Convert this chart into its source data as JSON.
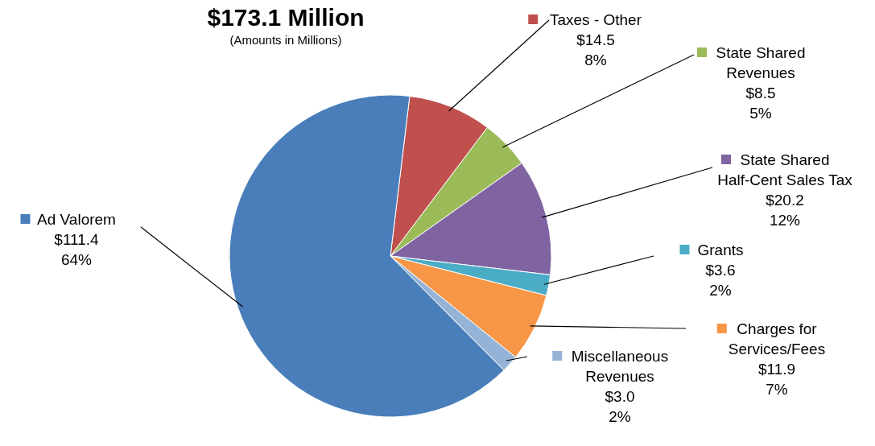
{
  "chart_data": {
    "type": "pie",
    "legend": "right",
    "title": "$173.1 Million",
    "subtitle": "(Amounts in Millions)",
    "categories": [
      "Taxes - Other",
      "State Shared Revenues",
      "State Shared Half-Cent Sales Tax",
      "Grants",
      "Charges for Services/Fees",
      "Miscellaneous Revenues",
      "Ad Valorem"
    ],
    "values": [
      14.5,
      8.5,
      20.2,
      3.6,
      11.9,
      3.0,
      111.4
    ],
    "colors": [
      "#c0504d",
      "#9bbb59",
      "#8064a2",
      "#4bacc6",
      "#f79646",
      "#95b3d7",
      "#4a7ebb"
    ],
    "value_labels": [
      "$14.5\n8%",
      "$8.5\n5%",
      "$20.2\n12%",
      "$3.6\n2%",
      "$11.9\n7%",
      "$3.0\n2%",
      "$111.4\n64%"
    ]
  }
}
